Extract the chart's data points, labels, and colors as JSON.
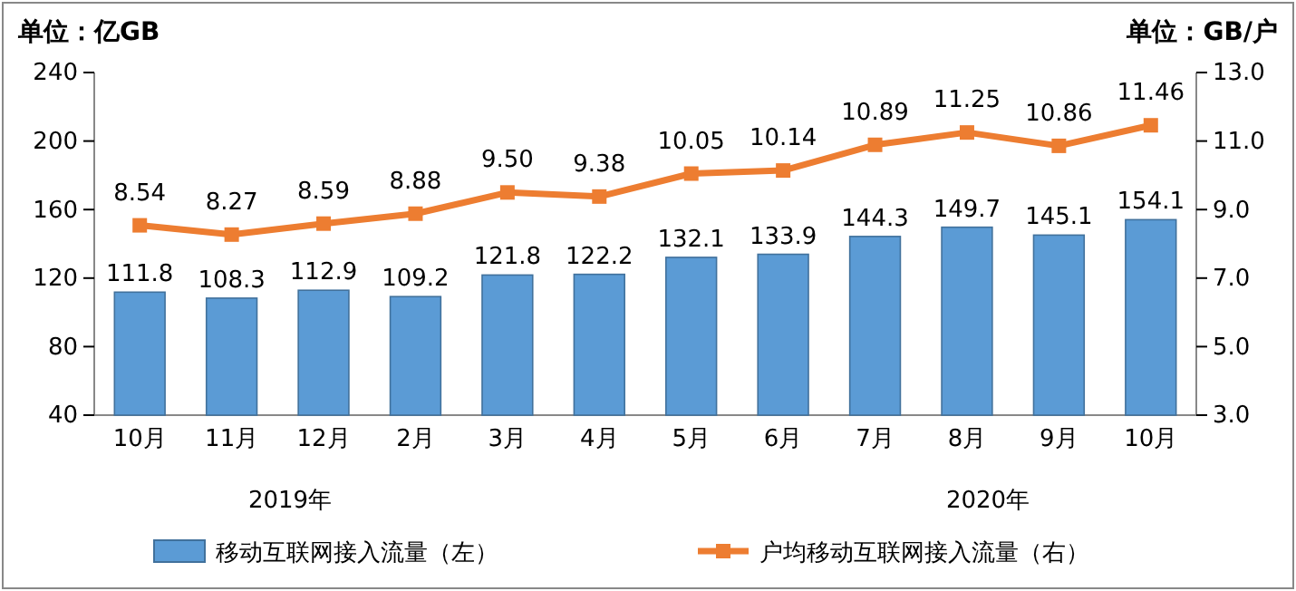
{
  "chart_data": {
    "type": "bar",
    "ylabel": "单位：亿GB",
    "y2label": "单位：GB/户",
    "categories": [
      "10月",
      "11月",
      "12月",
      "2月",
      "3月",
      "4月",
      "5月",
      "6月",
      "7月",
      "8月",
      "9月",
      "10月"
    ],
    "series": [
      {
        "name": "移动互联网接入流量（左）",
        "color": "#5b9bd5",
        "values": [
          111.8,
          108.3,
          112.9,
          109.2,
          121.8,
          122.2,
          132.1,
          133.9,
          144.3,
          149.7,
          145.1,
          154.1
        ],
        "value_labels": [
          "111.8",
          "108.3",
          "112.9",
          "109.2",
          "121.8",
          "122.2",
          "132.1",
          "133.9",
          "144.3",
          "149.7",
          "145.1",
          "154.1"
        ]
      },
      {
        "name": "户均移动互联网接入流量（右）",
        "type": "line",
        "axis": "y2",
        "color": "#ed7d31",
        "values": [
          8.54,
          8.27,
          8.59,
          8.88,
          9.5,
          9.38,
          10.05,
          10.14,
          10.89,
          11.25,
          10.86,
          11.46
        ],
        "value_labels": [
          "8.54",
          "8.27",
          "8.59",
          "8.88",
          "9.50",
          "9.38",
          "10.05",
          "10.14",
          "10.89",
          "11.25",
          "10.86",
          "11.46"
        ]
      }
    ],
    "ylim": [
      40,
      240
    ],
    "yticks": [
      40,
      80,
      120,
      160,
      200,
      240
    ],
    "y2lim": [
      3,
      13
    ],
    "y2ticks": [
      {
        "value": 3,
        "label": "3.0"
      },
      {
        "value": 5,
        "label": "5.0"
      },
      {
        "value": 7,
        "label": "7.0"
      },
      {
        "value": 9,
        "label": "9.0"
      },
      {
        "value": 11,
        "label": "11.0"
      },
      {
        "value": 13,
        "label": "13.0"
      }
    ],
    "annotations": [
      "2019年",
      "2020年"
    ],
    "marker": "square",
    "line_style": "solid",
    "grid": false,
    "legend": "bottom"
  }
}
